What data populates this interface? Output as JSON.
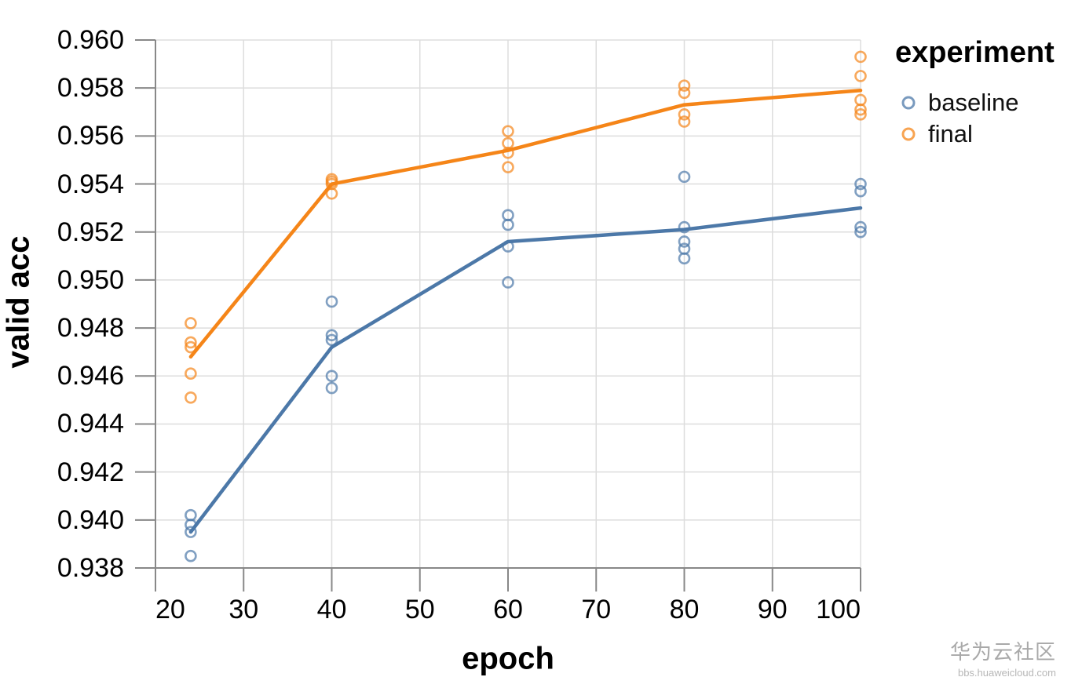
{
  "watermark": {
    "title": "华为云社区",
    "subtitle": "bbs.huaweicloud.com"
  },
  "chart_data": {
    "type": "scatter",
    "title": "",
    "xlabel": "epoch",
    "ylabel": "valid acc",
    "xlim": [
      20,
      100
    ],
    "ylim": [
      0.938,
      0.96
    ],
    "x_ticks": [
      20,
      30,
      40,
      50,
      60,
      70,
      80,
      90,
      100
    ],
    "y_ticks": [
      0.938,
      0.94,
      0.942,
      0.944,
      0.946,
      0.948,
      0.95,
      0.952,
      0.954,
      0.956,
      0.958,
      0.96
    ],
    "y_tick_decimals": 3,
    "grid": true,
    "legend": {
      "title": "experiment",
      "position": "right",
      "entries": [
        {
          "label": "baseline",
          "color": "#4c78a8"
        },
        {
          "label": "final",
          "color": "#f58518"
        }
      ]
    },
    "series": [
      {
        "name": "baseline",
        "color": "#4c78a8",
        "points": [
          [
            24,
            0.9402
          ],
          [
            24,
            0.9398
          ],
          [
            24,
            0.9395
          ],
          [
            24,
            0.9385
          ],
          [
            40,
            0.9491
          ],
          [
            40,
            0.9477
          ],
          [
            40,
            0.9475
          ],
          [
            40,
            0.946
          ],
          [
            40,
            0.9455
          ],
          [
            60,
            0.9527
          ],
          [
            60,
            0.9523
          ],
          [
            60,
            0.9514
          ],
          [
            60,
            0.9499
          ],
          [
            80,
            0.9543
          ],
          [
            80,
            0.9522
          ],
          [
            80,
            0.9516
          ],
          [
            80,
            0.9513
          ],
          [
            80,
            0.9509
          ],
          [
            100,
            0.954
          ],
          [
            100,
            0.9537
          ],
          [
            100,
            0.9522
          ],
          [
            100,
            0.952
          ]
        ],
        "trend": [
          [
            24,
            0.9395
          ],
          [
            40,
            0.9472
          ],
          [
            60,
            0.9516
          ],
          [
            80,
            0.9521
          ],
          [
            100,
            0.953
          ]
        ]
      },
      {
        "name": "final",
        "color": "#f58518",
        "points": [
          [
            24,
            0.9482
          ],
          [
            24,
            0.9474
          ],
          [
            24,
            0.9472
          ],
          [
            24,
            0.9461
          ],
          [
            24,
            0.9451
          ],
          [
            40,
            0.9542
          ],
          [
            40,
            0.9541
          ],
          [
            40,
            0.954
          ],
          [
            40,
            0.9536
          ],
          [
            60,
            0.9562
          ],
          [
            60,
            0.9557
          ],
          [
            60,
            0.9553
          ],
          [
            60,
            0.9547
          ],
          [
            80,
            0.9581
          ],
          [
            80,
            0.9578
          ],
          [
            80,
            0.9569
          ],
          [
            80,
            0.9566
          ],
          [
            100,
            0.9593
          ],
          [
            100,
            0.9585
          ],
          [
            100,
            0.9575
          ],
          [
            100,
            0.9571
          ],
          [
            100,
            0.9569
          ]
        ],
        "trend": [
          [
            24,
            0.9468
          ],
          [
            40,
            0.954
          ],
          [
            60,
            0.9554
          ],
          [
            80,
            0.9573
          ],
          [
            100,
            0.9579
          ]
        ]
      }
    ]
  }
}
